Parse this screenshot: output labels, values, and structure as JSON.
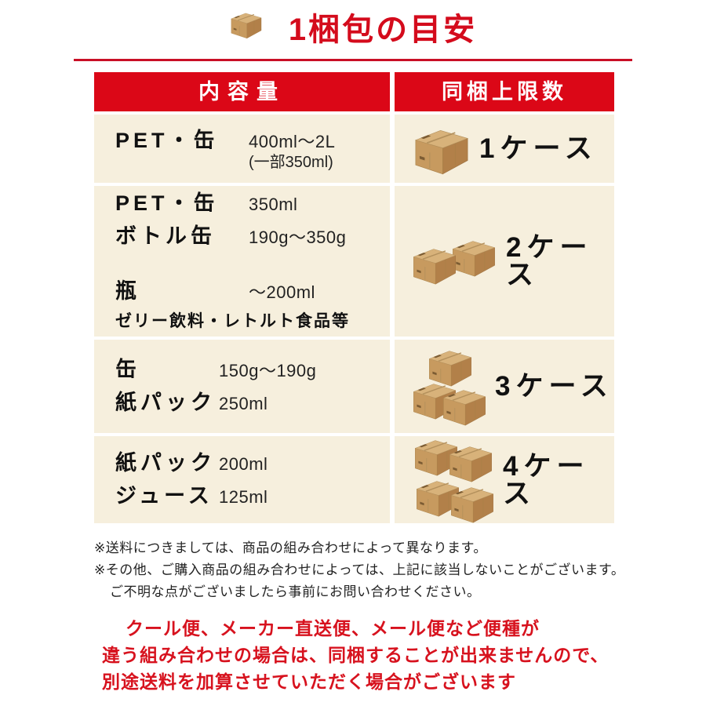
{
  "title": {
    "text": "1梱包の目安"
  },
  "table": {
    "header": {
      "left": "内容量",
      "right": "同梱上限数"
    },
    "rows": [
      {
        "items": [
          {
            "label": "PET・缶",
            "value": "400ml〜2L",
            "value_sub": "(一部350ml)"
          }
        ],
        "cases": "1",
        "case_label": "1ケース"
      },
      {
        "items": [
          {
            "label": "PET・缶",
            "value": "350ml"
          },
          {
            "label": "ボトル缶",
            "value": "190g〜350g"
          },
          {
            "label": "瓶",
            "value": "〜200ml"
          }
        ],
        "category_note": "ゼリー飲料・レトルト食品等",
        "cases": "2",
        "case_label": "2ケース"
      },
      {
        "items": [
          {
            "label": "缶",
            "value": "150g〜190g"
          },
          {
            "label": "紙パック",
            "value": "250ml"
          }
        ],
        "cases": "3",
        "case_label": "3ケース"
      },
      {
        "items": [
          {
            "label": "紙パック",
            "value": "200ml"
          },
          {
            "label": "ジュース",
            "value": "125ml"
          }
        ],
        "cases": "4",
        "case_label": "4ケース"
      }
    ]
  },
  "notes": {
    "note1": "※送料につきましては、商品の組み合わせによって異なります。",
    "note2_line1": "※その他、ご購入商品の組み合わせによっては、上記に該当しないことがございます。",
    "note2_line2": "ご不明な点がございましたら事前にお問い合わせください。"
  },
  "warning": {
    "line1": "クール便、メーカー直送便、メール便など便種が",
    "line2": "違う組み合わせの場合は、同梱することが出来ませんので、",
    "line3": "別途送料を加算させていただく場合がございます"
  },
  "colors": {
    "accent_red": "#db0717",
    "cell_background": "#f6efdd",
    "box_tan": "#c79a5f",
    "warning_red": "#d7121e"
  },
  "icons": {
    "title_icon": "cardboard-box-icon",
    "case_icon": "cardboard-box-stack-icon"
  }
}
